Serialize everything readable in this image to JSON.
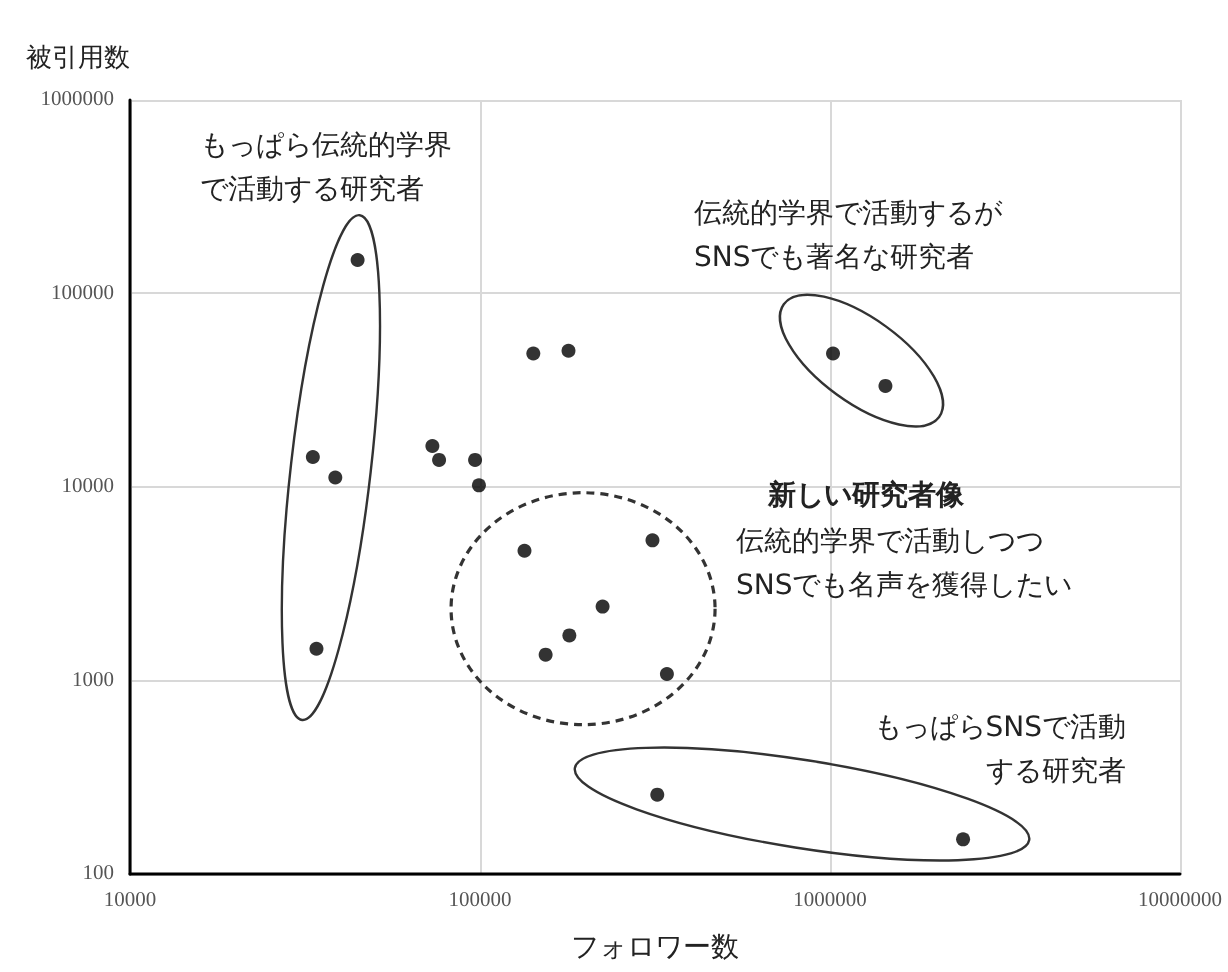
{
  "chart_data": {
    "type": "scatter",
    "xlabel": "フォロワー数",
    "ylabel": "被引用数",
    "x": [
      44700,
      142000,
      179000,
      33300,
      38600,
      73100,
      76400,
      96800,
      99300,
      134000,
      311000,
      224000,
      180000,
      154000,
      342000,
      34100,
      1020000,
      1440000,
      321000,
      2400000
    ],
    "values": [
      149000,
      49000,
      50600,
      14300,
      11200,
      16300,
      13800,
      13800,
      10200,
      4680,
      5300,
      2410,
      1710,
      1360,
      1080,
      1460,
      49000,
      33300,
      257,
      151
    ],
    "color": "#000000",
    "marker": "circle",
    "log": "xy",
    "grid": true,
    "xlim": [
      10000,
      10000000
    ],
    "xticks": [
      10000,
      100000,
      1000000,
      10000000
    ],
    "ylim": [
      100,
      1000000
    ],
    "yticks": [
      100,
      1000,
      10000,
      100000,
      1000000
    ],
    "annotations": [
      "もっぱら伝統的学界で活動する研究者",
      "伝統的学界で活動するが\nSNSでも著名な研究者",
      "新しい研究者像",
      "伝統的学界で活動しつつ\nSNSでも名声を獲得したい",
      "もっぱらSNSで活動する研究者"
    ]
  }
}
